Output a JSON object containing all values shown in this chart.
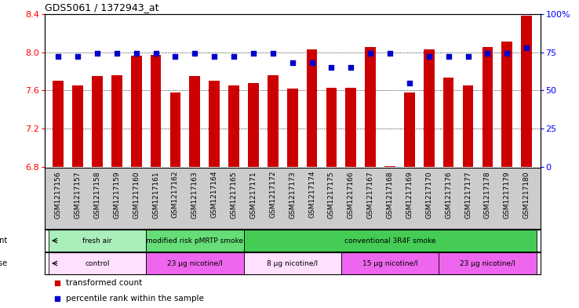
{
  "title": "GDS5061 / 1372943_at",
  "samples": [
    "GSM1217156",
    "GSM1217157",
    "GSM1217158",
    "GSM1217159",
    "GSM1217160",
    "GSM1217161",
    "GSM1217162",
    "GSM1217163",
    "GSM1217164",
    "GSM1217165",
    "GSM1217171",
    "GSM1217172",
    "GSM1217173",
    "GSM1217174",
    "GSM1217175",
    "GSM1217166",
    "GSM1217167",
    "GSM1217168",
    "GSM1217169",
    "GSM1217170",
    "GSM1217176",
    "GSM1217177",
    "GSM1217178",
    "GSM1217179",
    "GSM1217180"
  ],
  "bar_values": [
    7.7,
    7.65,
    7.75,
    7.76,
    7.96,
    7.97,
    7.58,
    7.75,
    7.7,
    7.65,
    7.68,
    7.76,
    7.62,
    8.03,
    7.63,
    7.63,
    8.05,
    6.81,
    7.58,
    8.03,
    7.73,
    7.65,
    8.05,
    8.11,
    8.38
  ],
  "percentile_values": [
    72,
    72,
    74,
    74,
    74,
    74,
    72,
    74,
    72,
    72,
    74,
    74,
    68,
    68,
    65,
    65,
    74,
    74,
    55,
    72,
    72,
    72,
    74,
    74,
    78
  ],
  "bar_color": "#CC0000",
  "dot_color": "#0000CC",
  "ylim_left": [
    6.8,
    8.4
  ],
  "ylim_right": [
    0,
    100
  ],
  "yticks_left": [
    6.8,
    7.2,
    7.6,
    8.0,
    8.4
  ],
  "yticks_right": [
    0,
    25,
    50,
    75,
    100
  ],
  "grid_lines": [
    7.2,
    7.6,
    8.0
  ],
  "agent_groups": [
    {
      "label": "fresh air",
      "start": 0,
      "end": 5,
      "color": "#AAEEBB"
    },
    {
      "label": "modified risk pMRTP smoke",
      "start": 5,
      "end": 10,
      "color": "#66DD77"
    },
    {
      "label": "conventional 3R4F smoke",
      "start": 10,
      "end": 25,
      "color": "#44CC55"
    }
  ],
  "dose_groups": [
    {
      "label": "control",
      "start": 0,
      "end": 5,
      "color": "#FFE0FF"
    },
    {
      "label": "23 μg nicotine/l",
      "start": 5,
      "end": 10,
      "color": "#EE66EE"
    },
    {
      "label": "8 μg nicotine/l",
      "start": 10,
      "end": 15,
      "color": "#FFE0FF"
    },
    {
      "label": "15 μg nicotine/l",
      "start": 15,
      "end": 20,
      "color": "#EE66EE"
    },
    {
      "label": "23 μg nicotine/l",
      "start": 20,
      "end": 25,
      "color": "#EE66EE"
    }
  ],
  "legend_items": [
    {
      "label": "transformed count",
      "color": "#CC0000"
    },
    {
      "label": "percentile rank within the sample",
      "color": "#0000CC"
    }
  ],
  "xtick_bg_color": "#CCCCCC"
}
